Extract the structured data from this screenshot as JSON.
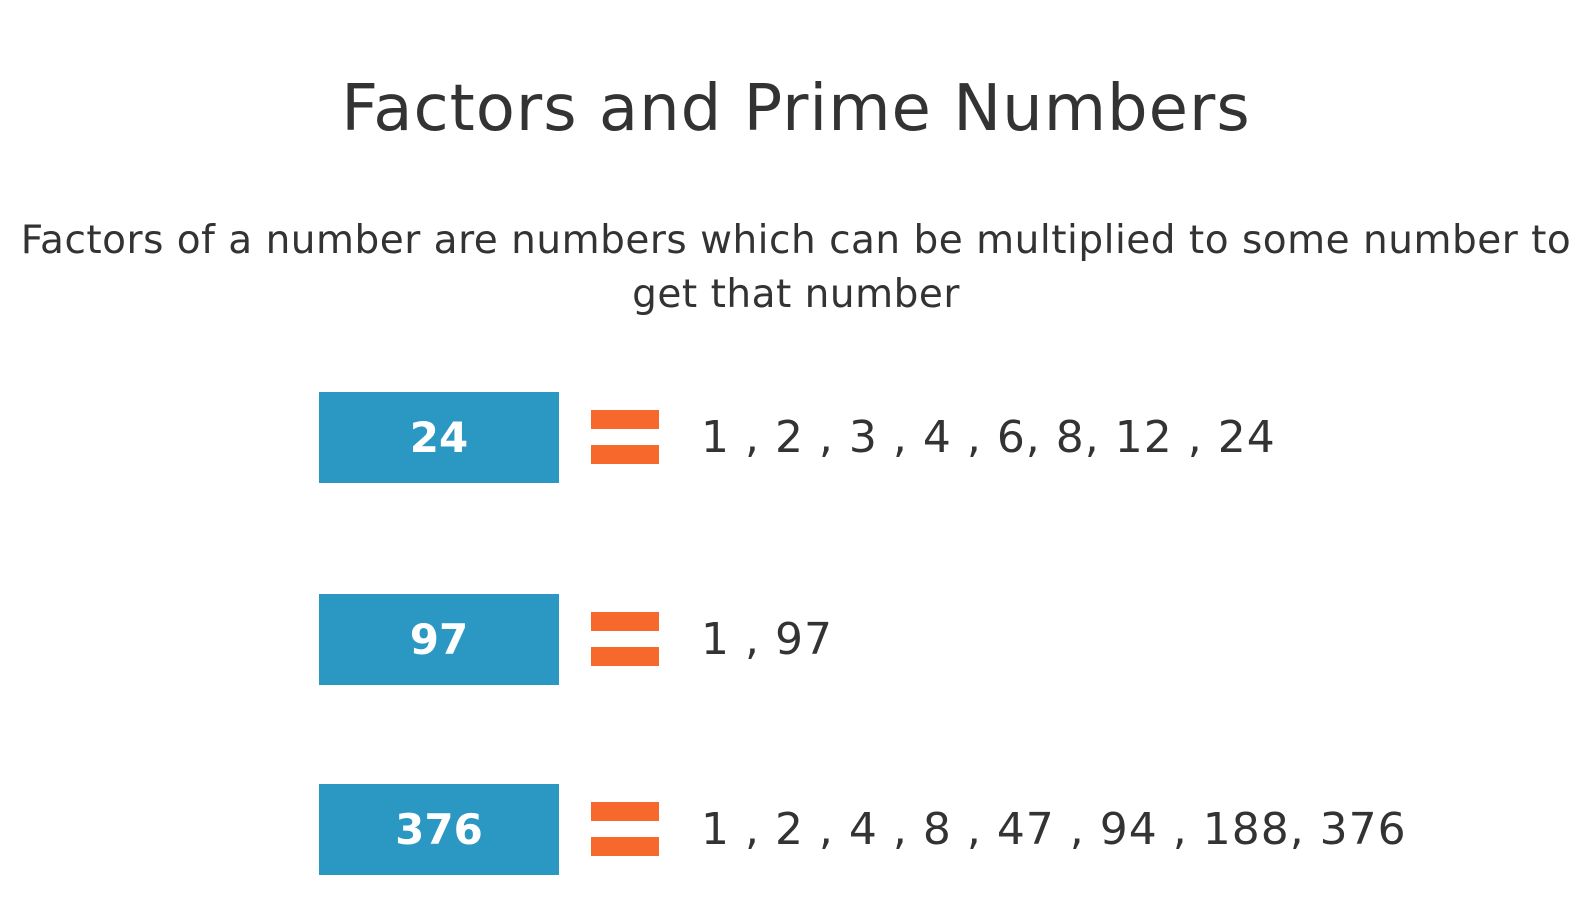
{
  "slide": {
    "title": "Factors and Prime Numbers",
    "definition": "Factors of a number are numbers which can be multiplied to some number to get that number"
  },
  "examples": [
    {
      "number": "24",
      "factors": "1 , 2 , 3 , 4 , 6, 8, 12 , 24"
    },
    {
      "number": "97",
      "factors": "1 , 97"
    },
    {
      "number": "376",
      "factors": "1 , 2 , 4 , 8 , 47 , 94 , 188, 376"
    }
  ],
  "colors": {
    "box": "#2b97c3",
    "equals": "#f7682d",
    "text": "#333333"
  },
  "icons": {
    "equals": "equals-icon"
  }
}
